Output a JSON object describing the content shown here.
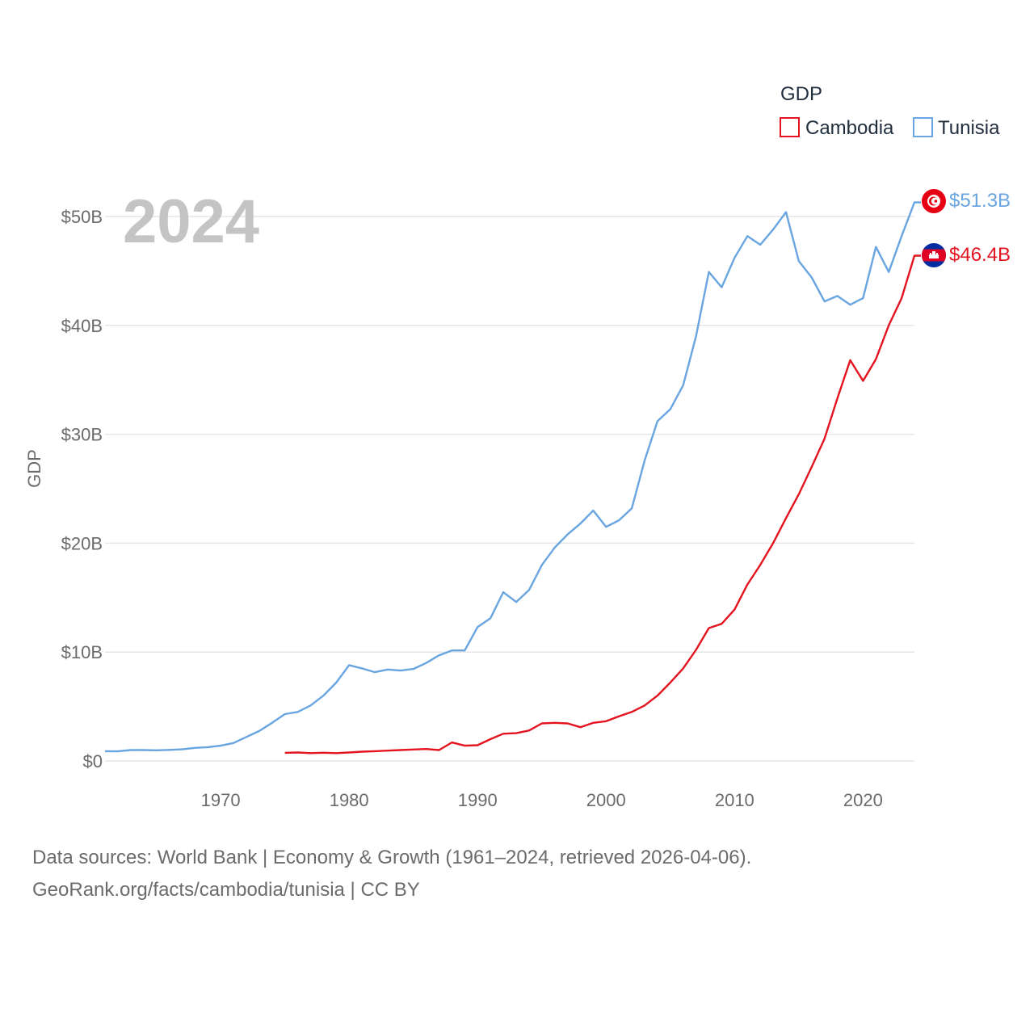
{
  "chart_data": {
    "type": "line",
    "title": "",
    "year_label": "2024",
    "ylabel": "GDP",
    "xlabel": "",
    "xlim": [
      1961,
      2024
    ],
    "ylim": [
      0,
      55
    ],
    "x_ticks": [
      1970,
      1980,
      1990,
      2000,
      2010,
      2020
    ],
    "y_ticks": [
      {
        "value": 0,
        "label": "$0"
      },
      {
        "value": 10,
        "label": "$10B"
      },
      {
        "value": 20,
        "label": "$20B"
      },
      {
        "value": 30,
        "label": "$30B"
      },
      {
        "value": 40,
        "label": "$40B"
      },
      {
        "value": 50,
        "label": "$50B"
      }
    ],
    "legend": {
      "title": "GDP",
      "position": "top-right"
    },
    "units": "USD billions",
    "series": [
      {
        "name": "Cambodia",
        "color": "#e3141f",
        "end_label": "$46.4B",
        "flag": "cambodia",
        "x": [
          1975,
          1976,
          1977,
          1978,
          1979,
          1980,
          1981,
          1982,
          1983,
          1984,
          1985,
          1986,
          1987,
          1988,
          1989,
          1990,
          1991,
          1992,
          1993,
          1994,
          1995,
          1996,
          1997,
          1998,
          1999,
          2000,
          2001,
          2002,
          2003,
          2004,
          2005,
          2006,
          2007,
          2008,
          2009,
          2010,
          2011,
          2012,
          2013,
          2014,
          2015,
          2016,
          2017,
          2018,
          2019,
          2020,
          2021,
          2022,
          2023,
          2024
        ],
        "values": [
          0.75,
          0.78,
          0.72,
          0.76,
          0.72,
          0.78,
          0.85,
          0.9,
          0.95,
          1.0,
          1.05,
          1.1,
          1.0,
          1.7,
          1.4,
          1.45,
          2.0,
          2.5,
          2.55,
          2.8,
          3.45,
          3.5,
          3.45,
          3.1,
          3.5,
          3.65,
          4.1,
          4.5,
          5.1,
          6.0,
          7.2,
          8.5,
          10.2,
          12.2,
          12.6,
          13.9,
          16.2,
          18.0,
          20.0,
          22.3,
          24.5,
          27.0,
          29.6,
          33.3,
          36.8,
          34.9,
          36.9,
          40.0,
          42.5,
          46.4
        ]
      },
      {
        "name": "Tunisia",
        "color": "#69a5e0",
        "end_label": "$51.3B",
        "flag": "tunisia",
        "x": [
          1961,
          1962,
          1963,
          1964,
          1965,
          1966,
          1967,
          1968,
          1969,
          1970,
          1971,
          1972,
          1973,
          1974,
          1975,
          1976,
          1977,
          1978,
          1979,
          1980,
          1981,
          1982,
          1983,
          1984,
          1985,
          1986,
          1987,
          1988,
          1989,
          1990,
          1991,
          1992,
          1993,
          1994,
          1995,
          1996,
          1997,
          1998,
          1999,
          2000,
          2001,
          2002,
          2003,
          2004,
          2005,
          2006,
          2007,
          2008,
          2009,
          2010,
          2011,
          2012,
          2013,
          2014,
          2015,
          2016,
          2017,
          2018,
          2019,
          2020,
          2021,
          2022,
          2023,
          2024
        ],
        "values": [
          0.9,
          0.88,
          1.0,
          1.0,
          0.98,
          1.02,
          1.07,
          1.2,
          1.26,
          1.4,
          1.65,
          2.2,
          2.75,
          3.5,
          4.3,
          4.5,
          5.1,
          6.0,
          7.2,
          8.8,
          8.5,
          8.15,
          8.4,
          8.3,
          8.45,
          9.0,
          9.7,
          10.15,
          10.15,
          12.3,
          13.1,
          15.5,
          14.6,
          15.7,
          18.0,
          19.6,
          20.8,
          21.8,
          23.0,
          21.5,
          22.1,
          23.2,
          27.6,
          31.2,
          32.3,
          34.5,
          39.0,
          44.9,
          43.5,
          46.2,
          48.2,
          47.4,
          48.8,
          50.4,
          45.9,
          44.4,
          42.2,
          42.7,
          41.9,
          42.5,
          47.2,
          44.9,
          48.2,
          51.3
        ]
      }
    ]
  },
  "footer": {
    "line1": "Data sources: World Bank | Economy & Growth (1961–2024, retrieved 2026-04-06).",
    "line2": "GeoRank.org/facts/cambodia/tunisia | CC BY"
  }
}
